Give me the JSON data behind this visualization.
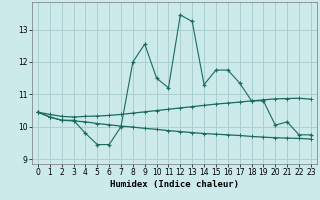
{
  "xlabel": "Humidex (Indice chaleur)",
  "background_color": "#cceaea",
  "grid_color": "#aacfcf",
  "line_color": "#1a6b5e",
  "xlim": [
    -0.5,
    23.5
  ],
  "ylim": [
    8.85,
    13.85
  ],
  "yticks": [
    9,
    10,
    11,
    12,
    13
  ],
  "xticks": [
    0,
    1,
    2,
    3,
    4,
    5,
    6,
    7,
    8,
    9,
    10,
    11,
    12,
    13,
    14,
    15,
    16,
    17,
    18,
    19,
    20,
    21,
    22,
    23
  ],
  "series1_x": [
    0,
    1,
    2,
    3,
    4,
    5,
    6,
    7,
    8,
    9,
    10,
    11,
    12,
    13,
    14,
    15,
    16,
    17,
    18,
    19,
    20,
    21,
    22,
    23
  ],
  "series1_y": [
    10.45,
    10.3,
    10.2,
    10.2,
    9.8,
    9.45,
    9.45,
    10.0,
    12.0,
    12.55,
    11.5,
    11.2,
    13.45,
    13.25,
    11.3,
    11.75,
    11.75,
    11.35,
    10.8,
    10.8,
    10.05,
    10.15,
    9.75,
    9.75
  ],
  "series2_x": [
    0,
    1,
    2,
    3,
    4,
    5,
    6,
    7,
    8,
    9,
    10,
    11,
    12,
    13,
    14,
    15,
    16,
    17,
    18,
    19,
    20,
    21,
    22,
    23
  ],
  "series2_y": [
    10.45,
    10.38,
    10.32,
    10.3,
    10.32,
    10.33,
    10.35,
    10.38,
    10.42,
    10.46,
    10.5,
    10.54,
    10.58,
    10.62,
    10.66,
    10.7,
    10.73,
    10.76,
    10.8,
    10.83,
    10.86,
    10.87,
    10.88,
    10.85
  ],
  "series3_x": [
    0,
    1,
    2,
    3,
    4,
    5,
    6,
    7,
    8,
    9,
    10,
    11,
    12,
    13,
    14,
    15,
    16,
    17,
    18,
    19,
    20,
    21,
    22,
    23
  ],
  "series3_y": [
    10.45,
    10.3,
    10.2,
    10.18,
    10.15,
    10.1,
    10.06,
    10.02,
    9.99,
    9.95,
    9.92,
    9.88,
    9.85,
    9.82,
    9.79,
    9.77,
    9.75,
    9.73,
    9.7,
    9.68,
    9.66,
    9.65,
    9.64,
    9.62
  ]
}
